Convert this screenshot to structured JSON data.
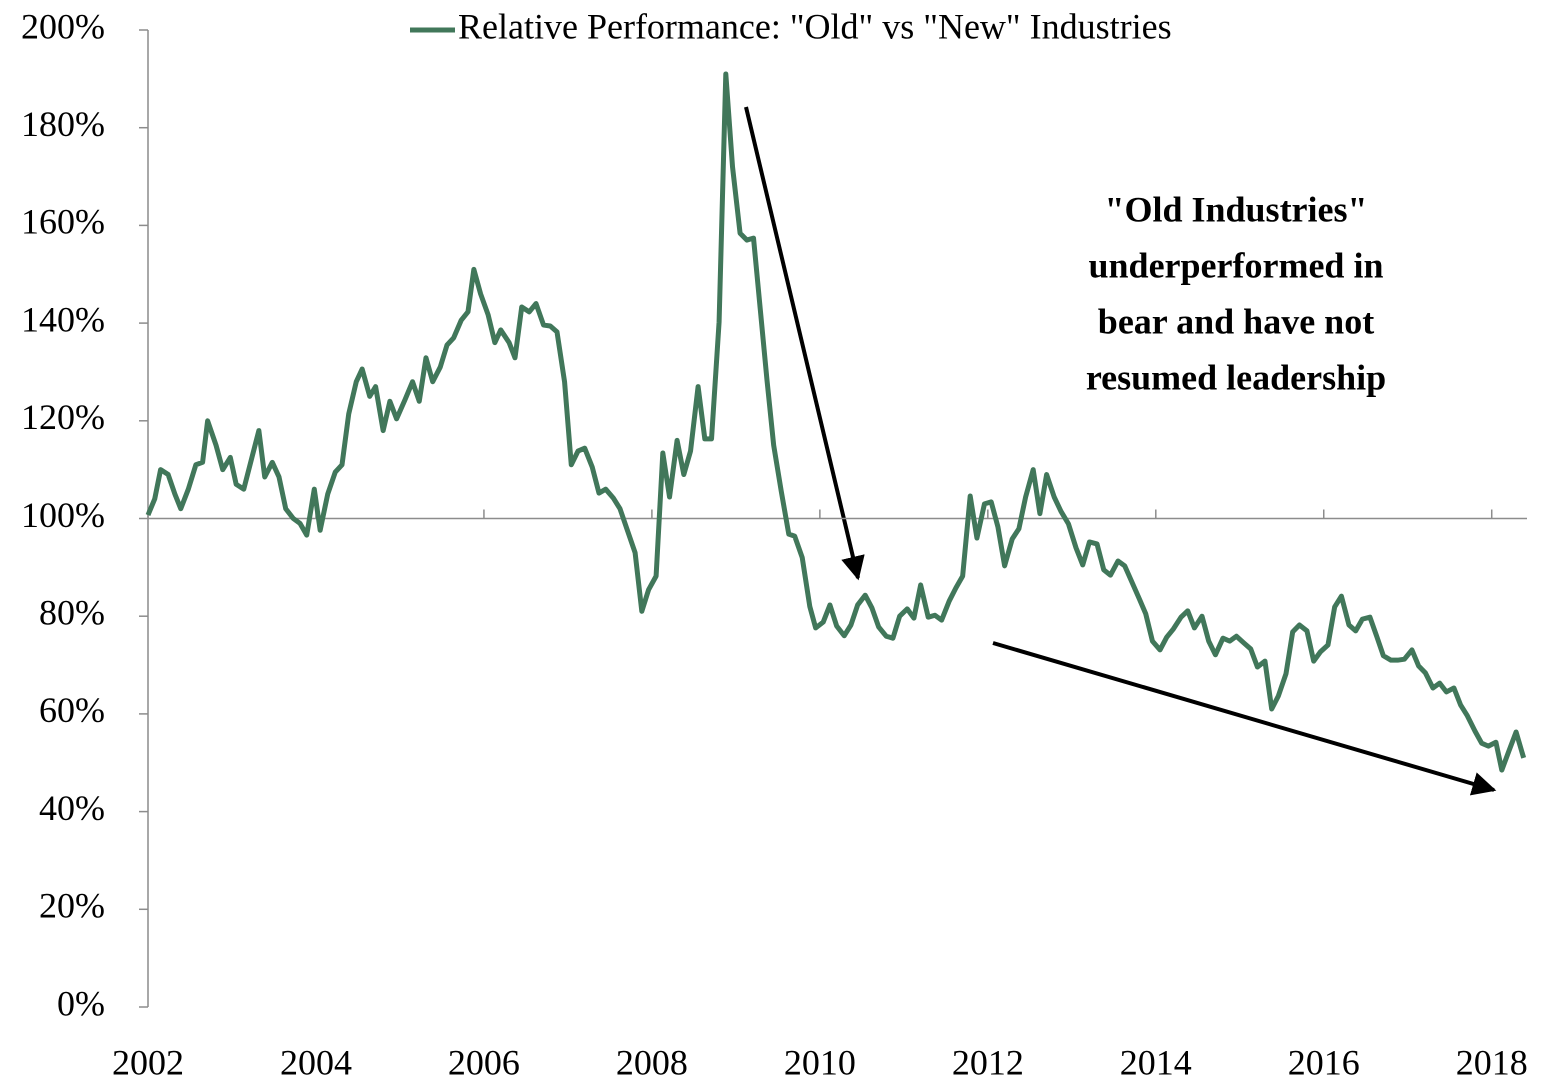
{
  "chart_data": {
    "type": "line",
    "annotation": [
      "\"Old Industries\"",
      "underperformed  in",
      "bear and have not",
      "resumed leadership"
    ],
    "x": [
      2002.0,
      2002.08,
      2002.15,
      2002.24,
      2002.32,
      2002.39,
      2002.48,
      2002.57,
      2002.65,
      2002.71,
      2002.81,
      2002.89,
      2002.98,
      2003.05,
      2003.14,
      2003.23,
      2003.32,
      2003.39,
      2003.48,
      2003.56,
      2003.64,
      2003.73,
      2003.81,
      2003.89,
      2003.98,
      2004.05,
      2004.14,
      2004.23,
      2004.31,
      2004.39,
      2004.48,
      2004.55,
      2004.64,
      2004.71,
      2004.8,
      2004.88,
      2004.96,
      2005.06,
      2005.15,
      2005.23,
      2005.31,
      2005.39,
      2005.48,
      2005.56,
      2005.64,
      2005.73,
      2005.81,
      2005.88,
      2005.96,
      2006.05,
      2006.13,
      2006.2,
      2006.3,
      2006.37,
      2006.45,
      2006.54,
      2006.62,
      2006.71,
      2006.79,
      2006.87,
      2006.96,
      2007.04,
      2007.12,
      2007.2,
      2007.29,
      2007.37,
      2007.45,
      2007.54,
      2007.62,
      2007.7,
      2007.8,
      2007.88,
      2007.96,
      2008.05,
      2008.13,
      2008.21,
      2008.3,
      2008.38,
      2008.46,
      2008.55,
      2008.63,
      2008.71,
      2008.8,
      2008.88,
      2008.96,
      2009.05,
      2009.13,
      2009.21,
      2009.29,
      2009.37,
      2009.45,
      2009.54,
      2009.63,
      2009.7,
      2009.79,
      2009.88,
      2009.95,
      2010.04,
      2010.12,
      2010.2,
      2010.29,
      2010.37,
      2010.45,
      2010.54,
      2010.62,
      2010.7,
      2010.79,
      2010.87,
      2010.95,
      2011.04,
      2011.12,
      2011.2,
      2011.29,
      2011.37,
      2011.45,
      2011.54,
      2011.62,
      2011.7,
      2011.79,
      2011.87,
      2011.96,
      2012.04,
      2012.12,
      2012.2,
      2012.29,
      2012.37,
      2012.45,
      2012.54,
      2012.62,
      2012.7,
      2012.79,
      2012.87,
      2012.96,
      2013.05,
      2013.13,
      2013.21,
      2013.3,
      2013.38,
      2013.46,
      2013.55,
      2013.63,
      2013.71,
      2013.8,
      2013.88,
      2013.96,
      2014.05,
      2014.13,
      2014.21,
      2014.3,
      2014.38,
      2014.46,
      2014.55,
      2014.63,
      2014.71,
      2014.8,
      2014.88,
      2014.96,
      2015.05,
      2015.13,
      2015.21,
      2015.3,
      2015.38,
      2015.46,
      2015.55,
      2015.63,
      2015.71,
      2015.8,
      2015.88,
      2015.96,
      2016.05,
      2016.13,
      2016.21,
      2016.3,
      2016.38,
      2016.46,
      2016.55,
      2016.63,
      2016.71,
      2016.8,
      2016.88,
      2016.96,
      2017.05,
      2017.13,
      2017.21,
      2017.3,
      2017.38,
      2017.46,
      2017.55,
      2017.63,
      2017.71,
      2017.8,
      2017.88,
      2017.96,
      2018.05,
      2018.12,
      2018.2,
      2018.29,
      2018.38
    ],
    "series": [
      {
        "name": "Relative Performance: \"Old\" vs \"New\" Industries",
        "color": "#41775a",
        "values": [
          100.7,
          104,
          110,
          109,
          105,
          102,
          106,
          111,
          111.5,
          120,
          115,
          110,
          112.5,
          107,
          106,
          112,
          118,
          108.5,
          111.5,
          108.5,
          102,
          100,
          99,
          96.6,
          106,
          97.6,
          105,
          109.5,
          111,
          121.4,
          128,
          130.6,
          125,
          127,
          118,
          124,
          120.4,
          124.3,
          128,
          124,
          132.9,
          128,
          131,
          135.5,
          137,
          140.6,
          142.3,
          151,
          146,
          141.7,
          136,
          138.6,
          136,
          132.9,
          143.3,
          142.3,
          144,
          139.6,
          139.4,
          138.2,
          128,
          111,
          113.8,
          114.4,
          110.5,
          105.2,
          106,
          104.2,
          102,
          98,
          93,
          81,
          85.4,
          88.2,
          113.4,
          104.4,
          116,
          109,
          113.8,
          127,
          116.3,
          116.3,
          140.2,
          191,
          172,
          158.4,
          157,
          157.4,
          142.9,
          128.4,
          115,
          105.6,
          96.8,
          96.4,
          92,
          82,
          77.6,
          78.8,
          82.3,
          78,
          76,
          78.2,
          82.3,
          84.3,
          81.7,
          77.8,
          75.9,
          75.5,
          80,
          81.5,
          79.6,
          86.4,
          79.8,
          80.2,
          79.2,
          83.1,
          85.8,
          88.2,
          104.6,
          96,
          103,
          103.4,
          98.3,
          90.3,
          95.8,
          97.9,
          104.4,
          110,
          101,
          109,
          104.4,
          101.5,
          98.9,
          94,
          90.5,
          95.2,
          94.8,
          89.5,
          88.4,
          91.3,
          90.3,
          87.2,
          83.7,
          80.5,
          74.9,
          73.1,
          75.7,
          77.4,
          79.8,
          81.1,
          77.6,
          80,
          74.9,
          72.1,
          75.5,
          74.9,
          75.9,
          74.5,
          73.3,
          69.6,
          70.8,
          61,
          63.7,
          68.2,
          76.8,
          78.2,
          77,
          70.8,
          72.7,
          74.1,
          81.9,
          84.1,
          78.2,
          77,
          79.4,
          79.8,
          75.9,
          71.9,
          71,
          71,
          71.2,
          73.1,
          69.8,
          68.4,
          65.3,
          66.3,
          64.5,
          65.3,
          61.8,
          59.6,
          56.5,
          54,
          53.4,
          54.2,
          48.5,
          52.2,
          56.3,
          51
        ]
      }
    ],
    "xlim": [
      2002,
      2018.42
    ],
    "xticks": [
      2002,
      2004,
      2006,
      2008,
      2010,
      2012,
      2014,
      2016,
      2018
    ],
    "ylim": [
      0,
      200
    ],
    "yticks": [
      {
        "value": 0,
        "label": "0%"
      },
      {
        "value": 20,
        "label": "20%"
      },
      {
        "value": 40,
        "label": "40%"
      },
      {
        "value": 60,
        "label": "60%"
      },
      {
        "value": 80,
        "label": "80%"
      },
      {
        "value": 100,
        "label": "100%"
      },
      {
        "value": 120,
        "label": "120%"
      },
      {
        "value": 140,
        "label": "140%"
      },
      {
        "value": 160,
        "label": "160%"
      },
      {
        "value": 180,
        "label": "180%"
      },
      {
        "value": 200,
        "label": "200%"
      }
    ],
    "xaxis_at": 100,
    "legend": "top"
  }
}
